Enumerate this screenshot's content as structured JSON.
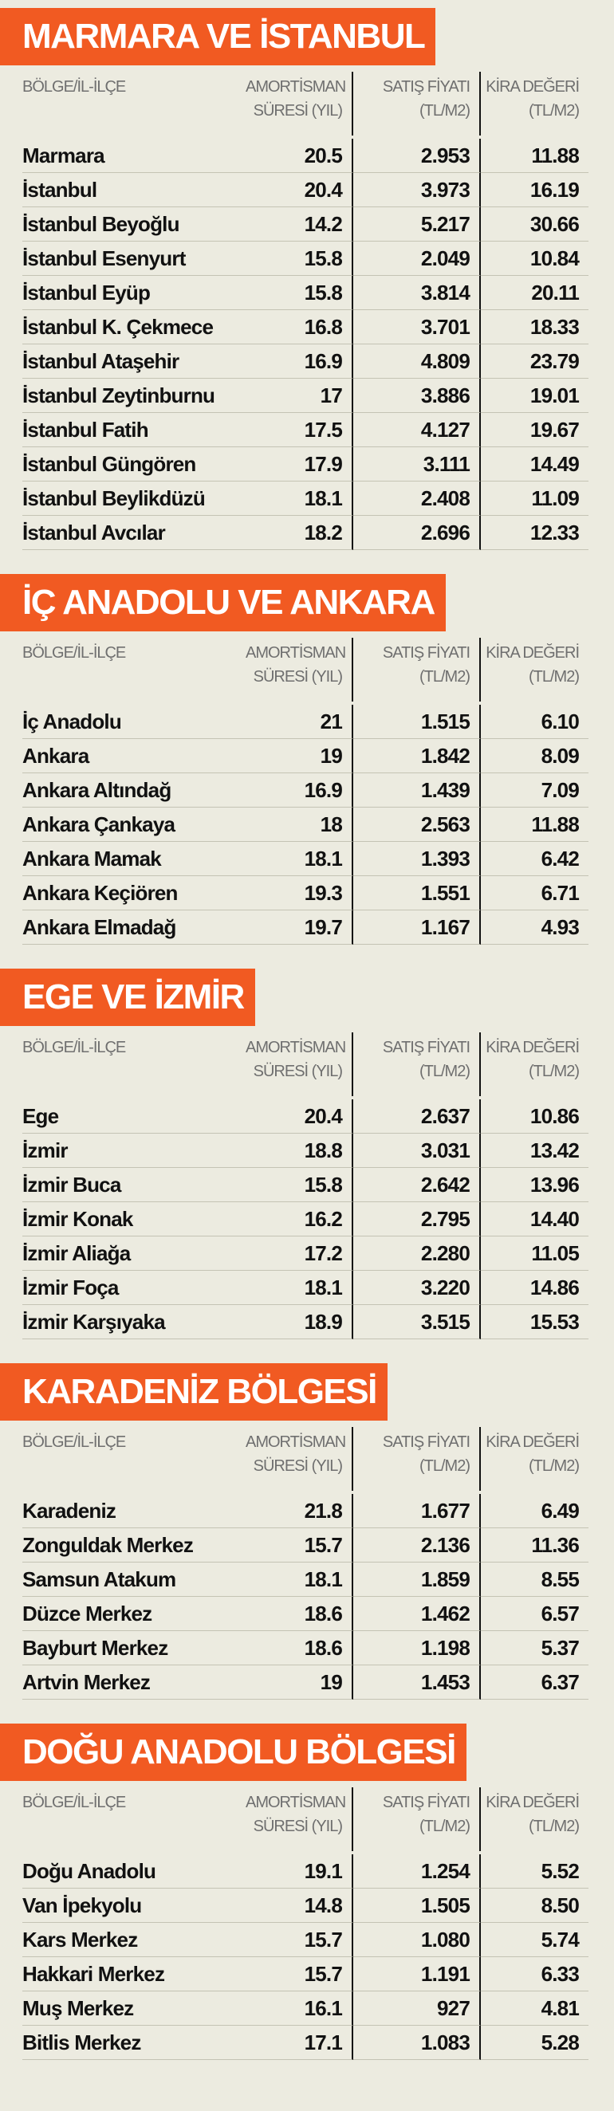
{
  "sections": [
    {
      "title": "MARMARA VE İSTANBUL",
      "headers": [
        [
          "BÖLGE/İL-İLÇE"
        ],
        [
          "AMORTİSMAN",
          "SÜRESİ (YIL)"
        ],
        [
          "SATIŞ FİYATI",
          "(TL/M2)"
        ],
        [
          "KİRA DEĞERİ",
          "(TL/M2)"
        ]
      ],
      "rows": [
        [
          "Marmara",
          "20.5",
          "2.953",
          "11.88"
        ],
        [
          "İstanbul",
          "20.4",
          "3.973",
          "16.19"
        ],
        [
          "İstanbul Beyoğlu",
          "14.2",
          "5.217",
          "30.66"
        ],
        [
          "İstanbul Esenyurt",
          "15.8",
          "2.049",
          "10.84"
        ],
        [
          "İstanbul Eyüp",
          "15.8",
          "3.814",
          "20.11"
        ],
        [
          "İstanbul K. Çekmece",
          "16.8",
          "3.701",
          "18.33"
        ],
        [
          "İstanbul Ataşehir",
          "16.9",
          "4.809",
          "23.79"
        ],
        [
          "İstanbul Zeytinburnu",
          "17",
          "3.886",
          "19.01"
        ],
        [
          "İstanbul Fatih",
          "17.5",
          "4.127",
          "19.67"
        ],
        [
          "İstanbul Güngören",
          "17.9",
          "3.111",
          "14.49"
        ],
        [
          "İstanbul Beylikdüzü",
          "18.1",
          "2.408",
          "11.09"
        ],
        [
          "İstanbul Avcılar",
          "18.2",
          "2.696",
          "12.33"
        ]
      ]
    },
    {
      "title": "İÇ ANADOLU VE ANKARA",
      "headers": [
        [
          "BÖLGE/İL-İLÇE"
        ],
        [
          "AMORTİSMAN",
          "SÜRESİ (YIL)"
        ],
        [
          "SATIŞ FİYATI",
          "(TL/M2)"
        ],
        [
          "KİRA DEĞERİ",
          "(TL/M2)"
        ]
      ],
      "rows": [
        [
          "İç Anadolu",
          "21",
          "1.515",
          "6.10"
        ],
        [
          "Ankara",
          "19",
          "1.842",
          "8.09"
        ],
        [
          "Ankara Altındağ",
          "16.9",
          "1.439",
          "7.09"
        ],
        [
          "Ankara Çankaya",
          "18",
          "2.563",
          "11.88"
        ],
        [
          "Ankara Mamak",
          "18.1",
          "1.393",
          "6.42"
        ],
        [
          "Ankara Keçiören",
          "19.3",
          "1.551",
          "6.71"
        ],
        [
          "Ankara Elmadağ",
          "19.7",
          "1.167",
          "4.93"
        ]
      ]
    },
    {
      "title": "EGE VE İZMİR",
      "headers": [
        [
          "BÖLGE/İL-İLÇE"
        ],
        [
          "AMORTİSMAN",
          "SÜRESİ (YIL)"
        ],
        [
          "SATIŞ FİYATI",
          "(TL/M2)"
        ],
        [
          "KİRA DEĞERİ",
          "(TL/M2)"
        ]
      ],
      "rows": [
        [
          "Ege",
          "20.4",
          "2.637",
          "10.86"
        ],
        [
          "İzmir",
          "18.8",
          "3.031",
          "13.42"
        ],
        [
          "İzmir Buca",
          "15.8",
          "2.642",
          "13.96"
        ],
        [
          "İzmir Konak",
          "16.2",
          "2.795",
          "14.40"
        ],
        [
          "İzmir Aliağa",
          "17.2",
          "2.280",
          "11.05"
        ],
        [
          "İzmir Foça",
          "18.1",
          "3.220",
          "14.86"
        ],
        [
          "İzmir Karşıyaka",
          "18.9",
          "3.515",
          "15.53"
        ]
      ]
    },
    {
      "title": "KARADENİZ BÖLGESİ",
      "headers": [
        [
          "BÖLGE/İL-İLÇE"
        ],
        [
          "AMORTİSMAN",
          "SÜRESİ (YIL)"
        ],
        [
          "SATIŞ FİYATI",
          "(TL/M2)"
        ],
        [
          "KİRA DEĞERİ",
          "(TL/M2)"
        ]
      ],
      "rows": [
        [
          "Karadeniz",
          "21.8",
          "1.677",
          "6.49"
        ],
        [
          "Zonguldak Merkez",
          "15.7",
          "2.136",
          "11.36"
        ],
        [
          "Samsun Atakum",
          "18.1",
          "1.859",
          "8.55"
        ],
        [
          "Düzce Merkez",
          "18.6",
          "1.462",
          "6.57"
        ],
        [
          "Bayburt Merkez",
          "18.6",
          "1.198",
          "5.37"
        ],
        [
          "Artvin Merkez",
          "19",
          "1.453",
          "6.37"
        ]
      ]
    },
    {
      "title": "DOĞU ANADOLU BÖLGESİ",
      "headers": [
        [
          "BÖLGE/İL-İLÇE"
        ],
        [
          "AMORTİSMAN",
          "SÜRESİ (YIL)"
        ],
        [
          "SATIŞ FİYATI",
          "(TL/M2)"
        ],
        [
          "KİRA DEĞERİ",
          "(TL/M2)"
        ]
      ],
      "rows": [
        [
          "Doğu Anadolu",
          "19.1",
          "1.254",
          "5.52"
        ],
        [
          "Van İpekyolu",
          "14.8",
          "1.505",
          "8.50"
        ],
        [
          "Kars Merkez",
          "15.7",
          "1.080",
          "5.74"
        ],
        [
          "Hakkari Merkez",
          "15.7",
          "1.191",
          "6.33"
        ],
        [
          "Muş Merkez",
          "16.1",
          "927",
          "4.81"
        ],
        [
          "Bitlis Merkez",
          "17.1",
          "1.083",
          "5.28"
        ]
      ]
    }
  ]
}
